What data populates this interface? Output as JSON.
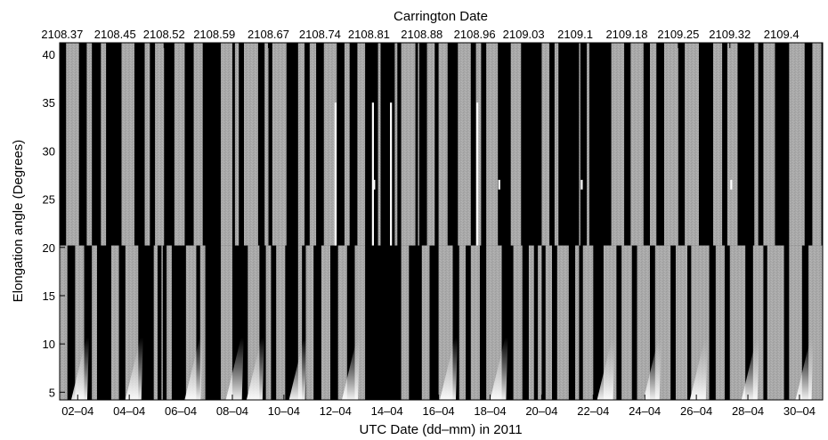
{
  "chart_data": {
    "type": "heatmap",
    "title": "",
    "xlabel": "UTC Date (dd–mm) in 2011",
    "ylabel": "Elongation angle (Degrees)",
    "top_xlabel": "Carrington Date",
    "colormap": "grayscale",
    "x_range_days": [
      1.3,
      30.9
    ],
    "ylim": [
      4.2,
      41.2
    ],
    "y_ticks": [
      5,
      10,
      15,
      20,
      25,
      30,
      35,
      40
    ],
    "x_ticks": [
      {
        "day": 2,
        "label": "02–04"
      },
      {
        "day": 4,
        "label": "04–04"
      },
      {
        "day": 6,
        "label": "06–04"
      },
      {
        "day": 8,
        "label": "08–04"
      },
      {
        "day": 10,
        "label": "10–04"
      },
      {
        "day": 12,
        "label": "12–04"
      },
      {
        "day": 14,
        "label": "14–04"
      },
      {
        "day": 16,
        "label": "16–04"
      },
      {
        "day": 18,
        "label": "18–04"
      },
      {
        "day": 20,
        "label": "20–04"
      },
      {
        "day": 22,
        "label": "22–04"
      },
      {
        "day": 24,
        "label": "24–04"
      },
      {
        "day": 26,
        "label": "26–04"
      },
      {
        "day": 28,
        "label": "28–04"
      },
      {
        "day": 30,
        "label": "30–04"
      }
    ],
    "carrington_ticks": [
      {
        "day": 1.4,
        "label": "2108.37"
      },
      {
        "day": 3.45,
        "label": "2108.45"
      },
      {
        "day": 5.35,
        "label": "2108.52"
      },
      {
        "day": 7.3,
        "label": "2108.59"
      },
      {
        "day": 9.4,
        "label": "2108.67"
      },
      {
        "day": 11.4,
        "label": "2108.74"
      },
      {
        "day": 13.3,
        "label": "2108.81"
      },
      {
        "day": 15.35,
        "label": "2108.88"
      },
      {
        "day": 17.4,
        "label": "2108.96"
      },
      {
        "day": 19.3,
        "label": "2109.03"
      },
      {
        "day": 21.3,
        "label": "2109.1"
      },
      {
        "day": 23.3,
        "label": "2109.18"
      },
      {
        "day": 25.3,
        "label": "2109.25"
      },
      {
        "day": 27.3,
        "label": "2109.32"
      },
      {
        "day": 29.3,
        "label": "2109.4"
      }
    ],
    "upper_band": {
      "elongation_range": [
        20.2,
        41.2
      ],
      "gray_intervals": [
        [
          1.55,
          2.05
        ],
        [
          2.35,
          2.55
        ],
        [
          2.9,
          3.1
        ],
        [
          3.7,
          4.2
        ],
        [
          4.6,
          4.8
        ],
        [
          5.0,
          5.35
        ],
        [
          5.75,
          6.15
        ],
        [
          6.5,
          6.85
        ],
        [
          7.55,
          8.0
        ],
        [
          8.1,
          8.25
        ],
        [
          8.45,
          9.0
        ],
        [
          9.25,
          9.4
        ],
        [
          9.55,
          10.1
        ],
        [
          10.55,
          10.8
        ],
        [
          11.0,
          11.25
        ],
        [
          11.55,
          12.05
        ],
        [
          12.35,
          12.55
        ],
        [
          12.85,
          13.15
        ],
        [
          13.65,
          13.75
        ],
        [
          14.3,
          14.4
        ],
        [
          14.55,
          15.1
        ],
        [
          15.2,
          15.25
        ],
        [
          15.55,
          15.85
        ],
        [
          16.0,
          16.35
        ],
        [
          16.75,
          17.25
        ],
        [
          17.45,
          17.65
        ],
        [
          17.85,
          18.3
        ],
        [
          18.8,
          19.2
        ],
        [
          20.0,
          20.3
        ],
        [
          20.5,
          20.65
        ],
        [
          21.45,
          21.5
        ],
        [
          21.75,
          21.85
        ],
        [
          22.7,
          23.2
        ],
        [
          23.45,
          23.95
        ],
        [
          24.2,
          24.45
        ],
        [
          24.75,
          25.3
        ],
        [
          25.55,
          26.1
        ],
        [
          26.65,
          27.0
        ],
        [
          27.2,
          27.6
        ],
        [
          28.25,
          28.4
        ],
        [
          28.6,
          29.05
        ],
        [
          29.6,
          30.2
        ],
        [
          30.5,
          30.85
        ]
      ],
      "white_markers": [
        {
          "day": 12.0,
          "from": 20.2,
          "to": 35.0
        },
        {
          "day": 13.45,
          "from": 20.2,
          "to": 35.0
        },
        {
          "day": 13.5,
          "from": 26.0,
          "to": 27.0
        },
        {
          "day": 14.15,
          "from": 20.2,
          "to": 35.0
        },
        {
          "day": 17.5,
          "from": 20.2,
          "to": 35.0
        },
        {
          "day": 18.35,
          "from": 26.0,
          "to": 27.0
        },
        {
          "day": 21.55,
          "from": 26.0,
          "to": 27.0
        },
        {
          "day": 27.35,
          "from": 26.0,
          "to": 27.0
        }
      ]
    },
    "lower_band": {
      "elongation_range": [
        4.2,
        20.2
      ],
      "gray_intervals": [
        [
          1.3,
          1.6
        ],
        [
          1.9,
          2.25
        ],
        [
          2.55,
          2.75
        ],
        [
          3.3,
          3.6
        ],
        [
          3.85,
          4.35
        ],
        [
          4.95,
          5.1
        ],
        [
          5.25,
          5.3
        ],
        [
          5.45,
          5.65
        ],
        [
          6.2,
          6.6
        ],
        [
          6.75,
          6.95
        ],
        [
          7.55,
          8.0
        ],
        [
          8.6,
          9.05
        ],
        [
          9.3,
          9.5
        ],
        [
          9.7,
          10.05
        ],
        [
          10.55,
          10.7
        ],
        [
          10.85,
          11.15
        ],
        [
          11.45,
          11.8
        ],
        [
          12.1,
          12.45
        ],
        [
          12.75,
          13.15
        ],
        [
          14.55,
          14.85
        ],
        [
          15.35,
          15.65
        ],
        [
          16.0,
          16.55
        ],
        [
          16.8,
          17.05
        ],
        [
          17.25,
          17.6
        ],
        [
          17.85,
          18.45
        ],
        [
          18.9,
          19.25
        ],
        [
          19.5,
          19.7
        ],
        [
          19.85,
          20.0
        ],
        [
          20.15,
          20.4
        ],
        [
          20.6,
          21.05
        ],
        [
          21.3,
          21.45
        ],
        [
          21.6,
          22.0
        ],
        [
          22.4,
          22.9
        ],
        [
          23.1,
          23.5
        ],
        [
          23.7,
          24.2
        ],
        [
          24.4,
          25.0
        ],
        [
          25.2,
          25.65
        ],
        [
          25.8,
          26.5
        ],
        [
          26.75,
          27.1
        ],
        [
          27.3,
          27.9
        ],
        [
          28.2,
          28.6
        ],
        [
          28.75,
          29.4
        ],
        [
          29.6,
          30.1
        ],
        [
          30.35,
          30.9
        ]
      ],
      "white_streak_days": [
        2.3,
        4.4,
        6.7,
        8.3,
        9.1,
        10.75,
        12.8,
        16.6,
        18.55,
        22.7,
        24.5,
        26.3,
        28.3,
        30.4
      ]
    }
  }
}
